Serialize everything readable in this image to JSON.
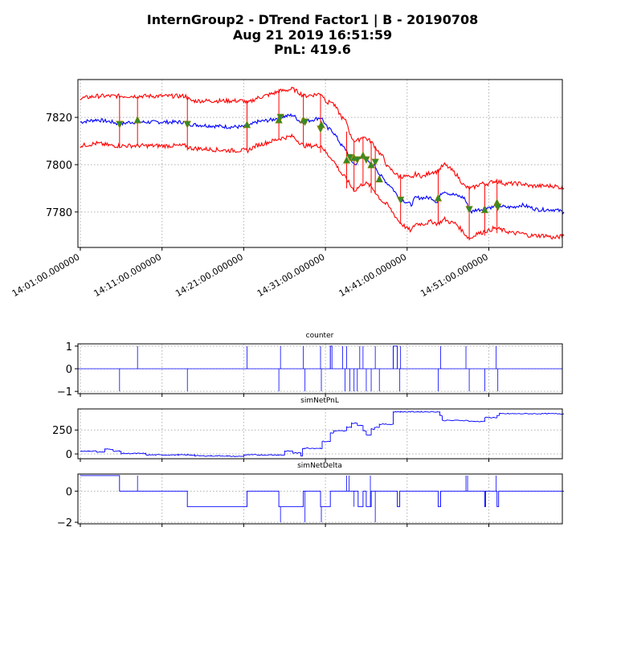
{
  "header": {
    "title_line1": "InternGroup2 - DTrend Factor1 | B - 20190708",
    "title_line2": "Aug 21 2019 16:51:59",
    "title_line3": "PnL: 419.6"
  },
  "colors": {
    "price": "#0000ff",
    "band": "#ff0000",
    "marker": "#2e8b2e",
    "marker_edge": "#808000",
    "grid": "#b0b0b0",
    "sub_line": "#0000ff"
  },
  "chart_data": [
    {
      "type": "line",
      "name": "price-panel",
      "title": "",
      "xlabel": "",
      "ylabel": "",
      "x_ticks": [
        "14:01:00.000000",
        "14:11:00.000000",
        "14:21:00.000000",
        "14:31:00.000000",
        "14:41:00.000000",
        "14:51:00.000000"
      ],
      "x_range_minutes": [
        0,
        59.2
      ],
      "y_ticks": [
        "7780",
        "7800",
        "7820"
      ],
      "ylim": [
        7765,
        7836
      ],
      "grid": true,
      "series": [
        {
          "role": "mid",
          "color": "#0000ff",
          "x": [
            0,
            2,
            4,
            4.8,
            6,
            7,
            10,
            12.9,
            13.5,
            18,
            20,
            20.5,
            21.5,
            23.5,
            24.3,
            26,
            27,
            27.3,
            29.5,
            30.3,
            30.7,
            31.3,
            32,
            32.6,
            33.1,
            33.6,
            33.9,
            34.6,
            35,
            35.5,
            36,
            36.6,
            37.1,
            37.6,
            38,
            39,
            40,
            40.5,
            41,
            42,
            43,
            43.7,
            44.2,
            44.6,
            45,
            46,
            47,
            47.5,
            47.9,
            48.5,
            49,
            49.5,
            50,
            50.5,
            51,
            52,
            53,
            54,
            55,
            56,
            57,
            58,
            59.2
          ],
          "y": [
            7818,
            7819,
            7818,
            7817,
            7818,
            7818,
            7818,
            7818,
            7817,
            7816,
            7816,
            7816,
            7818,
            7819,
            7820,
            7821,
            7818,
            7818,
            7820,
            7815,
            7815,
            7812,
            7808,
            7806,
            7802,
            7800,
            7801,
            7804,
            7802,
            7800,
            7800,
            7796,
            7794,
            7792,
            7791,
            7786,
            7784,
            7783,
            7786,
            7786,
            7786,
            7784,
            7788,
            7789,
            7788,
            7787,
            7786,
            7782,
            7780,
            7781,
            7781,
            7782,
            7782,
            7782,
            7783,
            7782,
            7782,
            7783,
            7782,
            7781,
            7781,
            7781,
            7780
          ]
        },
        {
          "role": "upper",
          "color": "#ff0000",
          "x": [
            0,
            2,
            4,
            4.8,
            6,
            7,
            10,
            12.9,
            13.5,
            18,
            20,
            20.5,
            21.5,
            23.5,
            24.3,
            26,
            27,
            27.3,
            29.5,
            30.3,
            30.7,
            31.3,
            32,
            32.6,
            33.1,
            33.6,
            33.9,
            34.6,
            35,
            35.5,
            36,
            36.6,
            37.1,
            37.6,
            38,
            39,
            40,
            40.5,
            41,
            42,
            43,
            43.7,
            44.2,
            44.6,
            45,
            46,
            47,
            47.5,
            47.9,
            48.5,
            49,
            49.5,
            50,
            50.5,
            51,
            52,
            53,
            54,
            55,
            56,
            57,
            58,
            59.2
          ],
          "y": [
            7828,
            7829,
            7829,
            7829,
            7829,
            7829,
            7829,
            7829,
            7827,
            7827,
            7827,
            7826,
            7828,
            7830,
            7831,
            7832,
            7830,
            7829,
            7830,
            7826,
            7827,
            7824,
            7820,
            7818,
            7812,
            7810,
            7810,
            7812,
            7811,
            7810,
            7808,
            7805,
            7803,
            7799,
            7798,
            7795,
            7795,
            7794,
            7796,
            7795,
            7797,
            7797,
            7799,
            7800,
            7799,
            7796,
            7791,
            7790,
            7790,
            7791,
            7792,
            7792,
            7792,
            7793,
            7793,
            7792,
            7792,
            7792,
            7791,
            7791,
            7791,
            7791,
            7790
          ]
        },
        {
          "role": "lower",
          "color": "#ff0000",
          "x": [
            0,
            2,
            4,
            4.8,
            6,
            7,
            10,
            12.9,
            13.5,
            18,
            20,
            20.5,
            21.5,
            23.5,
            24.3,
            26,
            27,
            27.3,
            29.5,
            30.3,
            30.7,
            31.3,
            32,
            32.6,
            33.1,
            33.6,
            33.9,
            34.6,
            35,
            35.5,
            36,
            36.6,
            37.1,
            37.6,
            38,
            39,
            40,
            40.5,
            41,
            42,
            43,
            43.7,
            44.2,
            44.6,
            45,
            46,
            47,
            47.5,
            47.9,
            48.5,
            49,
            49.5,
            50,
            50.5,
            51,
            52,
            53,
            54,
            55,
            56,
            57,
            58,
            59.2
          ],
          "y": [
            7808,
            7809,
            7808,
            7808,
            7808,
            7808,
            7808,
            7808,
            7807,
            7806,
            7806,
            7806,
            7808,
            7810,
            7811,
            7812,
            7809,
            7808,
            7808,
            7804,
            7803,
            7800,
            7796,
            7794,
            7791,
            7789,
            7790,
            7792,
            7792,
            7791,
            7789,
            7786,
            7784,
            7783,
            7781,
            7776,
            7773,
            7772,
            7775,
            7775,
            7776,
            7775,
            7776,
            7777,
            7776,
            7775,
            7771,
            7769,
            7769,
            7771,
            7771,
            7772,
            7772,
            7773,
            7773,
            7772,
            7771,
            7771,
            7770,
            7770,
            7770,
            7769,
            7770
          ]
        }
      ],
      "band_spikes": [
        {
          "x": 4.8,
          "from": 7807,
          "to": 7829
        },
        {
          "x": 7.0,
          "from": 7808,
          "to": 7829
        },
        {
          "x": 13.1,
          "from": 7806,
          "to": 7829
        },
        {
          "x": 20.4,
          "from": 7806,
          "to": 7827
        },
        {
          "x": 24.3,
          "from": 7811,
          "to": 7832
        },
        {
          "x": 27.3,
          "from": 7808,
          "to": 7830
        },
        {
          "x": 29.4,
          "from": 7805,
          "to": 7830
        },
        {
          "x": 32.6,
          "from": 7790,
          "to": 7814
        },
        {
          "x": 33.5,
          "from": 7789,
          "to": 7810
        },
        {
          "x": 34.6,
          "from": 7791,
          "to": 7812
        },
        {
          "x": 35.6,
          "from": 7788,
          "to": 7810
        },
        {
          "x": 36.1,
          "from": 7788,
          "to": 7807
        },
        {
          "x": 39.2,
          "from": 7775,
          "to": 7796
        },
        {
          "x": 43.8,
          "from": 7775,
          "to": 7798
        },
        {
          "x": 47.6,
          "from": 7768,
          "to": 7791
        },
        {
          "x": 49.5,
          "from": 7770,
          "to": 7792
        },
        {
          "x": 51.0,
          "from": 7771,
          "to": 7794
        }
      ],
      "trade_markers": [
        {
          "x": 4.8,
          "y": 7817,
          "dir": "down"
        },
        {
          "x": 7.0,
          "y": 7819,
          "dir": "up"
        },
        {
          "x": 13.1,
          "y": 7817,
          "dir": "down"
        },
        {
          "x": 20.4,
          "y": 7817,
          "dir": "up"
        },
        {
          "x": 24.3,
          "y": 7819,
          "dir": "up"
        },
        {
          "x": 24.5,
          "y": 7820,
          "dir": "down"
        },
        {
          "x": 27.3,
          "y": 7819,
          "dir": "up"
        },
        {
          "x": 27.5,
          "y": 7818,
          "dir": "down"
        },
        {
          "x": 29.4,
          "y": 7815,
          "dir": "down"
        },
        {
          "x": 29.5,
          "y": 7817,
          "dir": "up"
        },
        {
          "x": 32.6,
          "y": 7802,
          "dir": "up"
        },
        {
          "x": 33.0,
          "y": 7803,
          "dir": "down"
        },
        {
          "x": 33.5,
          "y": 7803,
          "dir": "up"
        },
        {
          "x": 33.9,
          "y": 7802,
          "dir": "down"
        },
        {
          "x": 34.6,
          "y": 7804,
          "dir": "up"
        },
        {
          "x": 35.0,
          "y": 7802,
          "dir": "down"
        },
        {
          "x": 35.6,
          "y": 7800,
          "dir": "up"
        },
        {
          "x": 36.1,
          "y": 7801,
          "dir": "down"
        },
        {
          "x": 36.6,
          "y": 7794,
          "dir": "up"
        },
        {
          "x": 39.2,
          "y": 7785,
          "dir": "down"
        },
        {
          "x": 43.8,
          "y": 7786,
          "dir": "up"
        },
        {
          "x": 47.6,
          "y": 7781,
          "dir": "down"
        },
        {
          "x": 49.5,
          "y": 7781,
          "dir": "up"
        },
        {
          "x": 51.0,
          "y": 7784,
          "dir": "up"
        },
        {
          "x": 51.1,
          "y": 7782,
          "dir": "down"
        }
      ]
    },
    {
      "type": "line",
      "name": "counter",
      "title": "counter",
      "y_ticks": [
        "1",
        "0",
        "−1"
      ],
      "ylim": [
        -1.1,
        1.1
      ],
      "grid": true,
      "baseline": 0,
      "pulses": [
        {
          "x": 4.8,
          "v": -1
        },
        {
          "x": 7.0,
          "v": 1
        },
        {
          "x": 13.1,
          "v": -1
        },
        {
          "x": 20.4,
          "v": 1
        },
        {
          "x": 24.3,
          "v": -1
        },
        {
          "x": 24.5,
          "v": 1
        },
        {
          "x": 27.3,
          "v": 1
        },
        {
          "x": 27.5,
          "v": -1
        },
        {
          "x": 29.4,
          "v": 1
        },
        {
          "x": 29.5,
          "v": -1
        },
        {
          "x": 30.6,
          "v": 1
        },
        {
          "x": 32.1,
          "v": 1
        },
        {
          "x": 32.4,
          "v": -1
        },
        {
          "x": 32.6,
          "v": 1
        },
        {
          "x": 33.0,
          "v": -1
        },
        {
          "x": 33.5,
          "v": -1
        },
        {
          "x": 33.9,
          "v": -1
        },
        {
          "x": 34.2,
          "v": 1
        },
        {
          "x": 34.6,
          "v": 1
        },
        {
          "x": 35.0,
          "v": -1
        },
        {
          "x": 35.6,
          "v": -1
        },
        {
          "x": 36.1,
          "v": 1
        },
        {
          "x": 36.6,
          "v": -1
        },
        {
          "x": 38.3,
          "v": 1
        },
        {
          "x": 38.8,
          "v": 1
        },
        {
          "x": 39.1,
          "v": -1
        },
        {
          "x": 39.2,
          "v": 1
        },
        {
          "x": 43.8,
          "v": -1
        },
        {
          "x": 44.1,
          "v": 1
        },
        {
          "x": 47.2,
          "v": 1
        },
        {
          "x": 47.6,
          "v": -1
        },
        {
          "x": 49.5,
          "v": -1
        },
        {
          "x": 50.9,
          "v": 1
        },
        {
          "x": 51.1,
          "v": -1
        }
      ],
      "plateaus": [
        {
          "x0": 38.3,
          "x1": 38.8,
          "v": 1
        },
        {
          "x0": 30.6,
          "x1": 30.8,
          "v": 1
        }
      ]
    },
    {
      "type": "line",
      "name": "simNetPnL",
      "title": "simNetPnL",
      "y_ticks": [
        "250",
        "0"
      ],
      "ylim": [
        -50,
        470
      ],
      "grid": true,
      "x": [
        0,
        1,
        2,
        3,
        4,
        4.8,
        5,
        7,
        8,
        10,
        12,
        13.1,
        14,
        16,
        18,
        20,
        20.4,
        22,
        24,
        24.3,
        25,
        26,
        27,
        27.2,
        27.4,
        29.4,
        29.6,
        30.6,
        31,
        32.1,
        32.6,
        33.2,
        33.9,
        34.6,
        35.0,
        35.6,
        36.0,
        36.6,
        38.3,
        39.0,
        39.2,
        43.7,
        44.0,
        44.3,
        47.5,
        47.7,
        49.5,
        51.0,
        51.3,
        59.2
      ],
      "y": [
        30,
        30,
        20,
        50,
        30,
        25,
        5,
        5,
        -10,
        -10,
        -10,
        -10,
        -20,
        -20,
        -25,
        -10,
        -10,
        -10,
        -10,
        -10,
        30,
        10,
        -20,
        60,
        60,
        60,
        130,
        220,
        240,
        240,
        280,
        320,
        300,
        240,
        200,
        260,
        280,
        310,
        440,
        440,
        440,
        440,
        400,
        350,
        340,
        340,
        380,
        400,
        420,
        420
      ]
    },
    {
      "type": "line",
      "name": "simNetDelta",
      "title": "simNetDelta",
      "y_ticks": [
        "0",
        "−2"
      ],
      "ylim": [
        -2.1,
        1.1
      ],
      "grid": true,
      "steps": [
        {
          "x": 0,
          "v": 1
        },
        {
          "x": 4.8,
          "v": 0
        },
        {
          "x": 13.1,
          "v": -1
        },
        {
          "x": 20.4,
          "v": 0
        },
        {
          "x": 24.3,
          "v": -1
        },
        {
          "x": 27.3,
          "v": 0
        },
        {
          "x": 29.4,
          "v": -1
        },
        {
          "x": 30.6,
          "v": 0
        },
        {
          "x": 34.0,
          "v": -1
        },
        {
          "x": 34.6,
          "v": 0
        },
        {
          "x": 35.0,
          "v": -1
        },
        {
          "x": 35.6,
          "v": 0
        },
        {
          "x": 36.6,
          "v": 0
        },
        {
          "x": 38.8,
          "v": -1
        },
        {
          "x": 39.1,
          "v": 0
        },
        {
          "x": 43.8,
          "v": -1
        },
        {
          "x": 44.1,
          "v": 0
        },
        {
          "x": 49.5,
          "v": -1
        },
        {
          "x": 49.6,
          "v": 0
        },
        {
          "x": 51.0,
          "v": -1
        },
        {
          "x": 51.2,
          "v": 0
        },
        {
          "x": 59.2,
          "v": 0
        }
      ],
      "pulses": [
        {
          "x": 7.0,
          "v": 1
        },
        {
          "x": 24.5,
          "v": -2
        },
        {
          "x": 27.5,
          "v": -2
        },
        {
          "x": 29.5,
          "v": -2
        },
        {
          "x": 32.6,
          "v": 1
        },
        {
          "x": 32.9,
          "v": 1
        },
        {
          "x": 33.5,
          "v": -1
        },
        {
          "x": 35.5,
          "v": 1
        },
        {
          "x": 36.1,
          "v": -2
        },
        {
          "x": 47.2,
          "v": 1
        },
        {
          "x": 47.4,
          "v": 1
        },
        {
          "x": 50.9,
          "v": 1
        }
      ]
    }
  ]
}
